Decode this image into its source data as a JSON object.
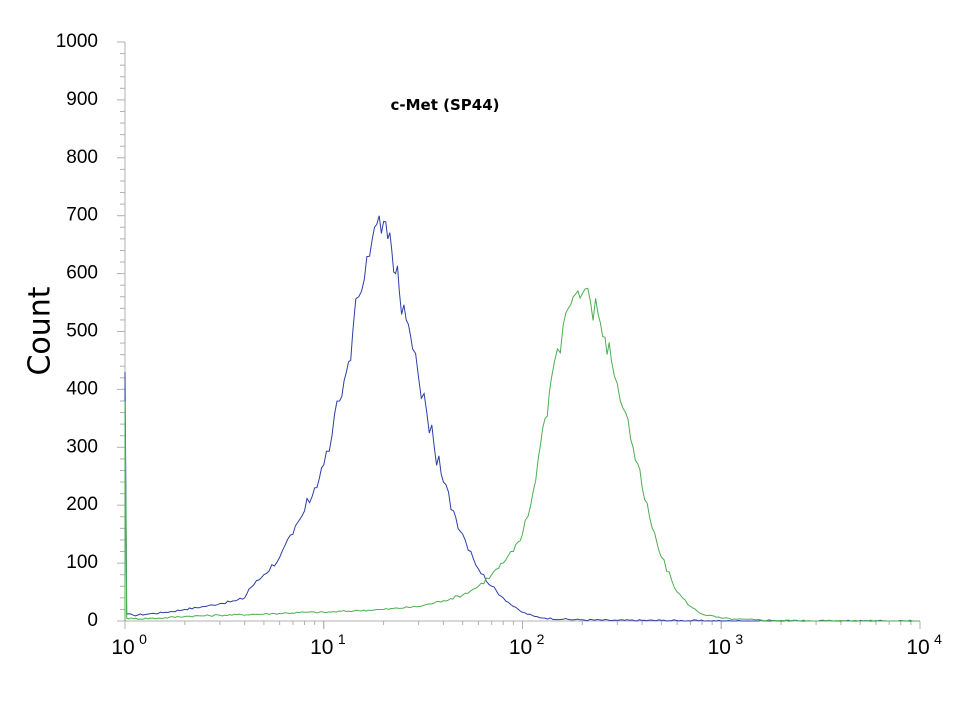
{
  "chart_data": {
    "type": "line",
    "title": "c-Met  (SP44)",
    "ylabel": "Count",
    "xlabel": "",
    "x_scale": "log",
    "xlim": [
      1,
      10000
    ],
    "ylim": [
      0,
      1000
    ],
    "y_ticks": [
      "0",
      "100",
      "200",
      "300",
      "400",
      "500",
      "600",
      "700",
      "800",
      "900",
      "1000"
    ],
    "x_ticks": [
      {
        "base": "10",
        "exp": "0"
      },
      {
        "base": "10",
        "exp": "1"
      },
      {
        "base": "10",
        "exp": "2"
      },
      {
        "base": "10",
        "exp": "3"
      },
      {
        "base": "10",
        "exp": "4"
      }
    ],
    "grid": false,
    "legend": "none",
    "series": [
      {
        "color": "#2b3fa6",
        "x": [
          1.0,
          1.02,
          1.1,
          1.3,
          1.6,
          2.0,
          2.5,
          3.0,
          3.6,
          4.0,
          4.2,
          5.0,
          6.0,
          7.0,
          8.0,
          9.0,
          10.0,
          11.0,
          12.0,
          13.0,
          14.0,
          15.0,
          16.0,
          17.0,
          18.0,
          19.0,
          20.0,
          21.0,
          22.0,
          23.0,
          24.0,
          26.0,
          28.0,
          30.0,
          33.0,
          36.0,
          40.0,
          45.0,
          50.0,
          55.0,
          60.0,
          70.0,
          80.0,
          90.0,
          100.0,
          115.0,
          130.0,
          160.0,
          200.0,
          300.0,
          500.0,
          1000.0,
          3000.0,
          10000.0
        ],
        "y": [
          430,
          12,
          10,
          12,
          15,
          20,
          25,
          30,
          35,
          40,
          55,
          80,
          110,
          150,
          190,
          230,
          270,
          320,
          380,
          430,
          500,
          560,
          590,
          630,
          680,
          700,
          690,
          660,
          640,
          600,
          570,
          520,
          470,
          420,
          360,
          300,
          240,
          190,
          150,
          120,
          90,
          60,
          40,
          25,
          15,
          8,
          5,
          3,
          2,
          1,
          1,
          0,
          0,
          0
        ]
      },
      {
        "color": "#4caf50",
        "x": [
          1.0,
          1.02,
          1.1,
          1.5,
          2.0,
          3.0,
          5.0,
          8.0,
          10.0,
          15.0,
          20.0,
          30.0,
          40.0,
          50.0,
          60.0,
          70.0,
          80.0,
          90.0,
          100.0,
          110.0,
          120.0,
          130.0,
          140.0,
          150.0,
          160.0,
          170.0,
          180.0,
          190.0,
          200.0,
          220.0,
          240.0,
          260.0,
          280.0,
          300.0,
          330.0,
          360.0,
          400.0,
          450.0,
          500.0,
          600.0,
          700.0,
          800.0,
          1000.0,
          1200.0,
          1500.0,
          2000.0,
          3000.0,
          10000.0
        ],
        "y": [
          380,
          5,
          4,
          5,
          8,
          10,
          12,
          15,
          15,
          18,
          20,
          25,
          35,
          45,
          60,
          80,
          100,
          120,
          150,
          200,
          280,
          350,
          420,
          470,
          510,
          540,
          560,
          570,
          565,
          550,
          530,
          490,
          450,
          410,
          360,
          300,
          230,
          160,
          110,
          50,
          25,
          12,
          5,
          3,
          2,
          1,
          0,
          0
        ]
      }
    ]
  }
}
